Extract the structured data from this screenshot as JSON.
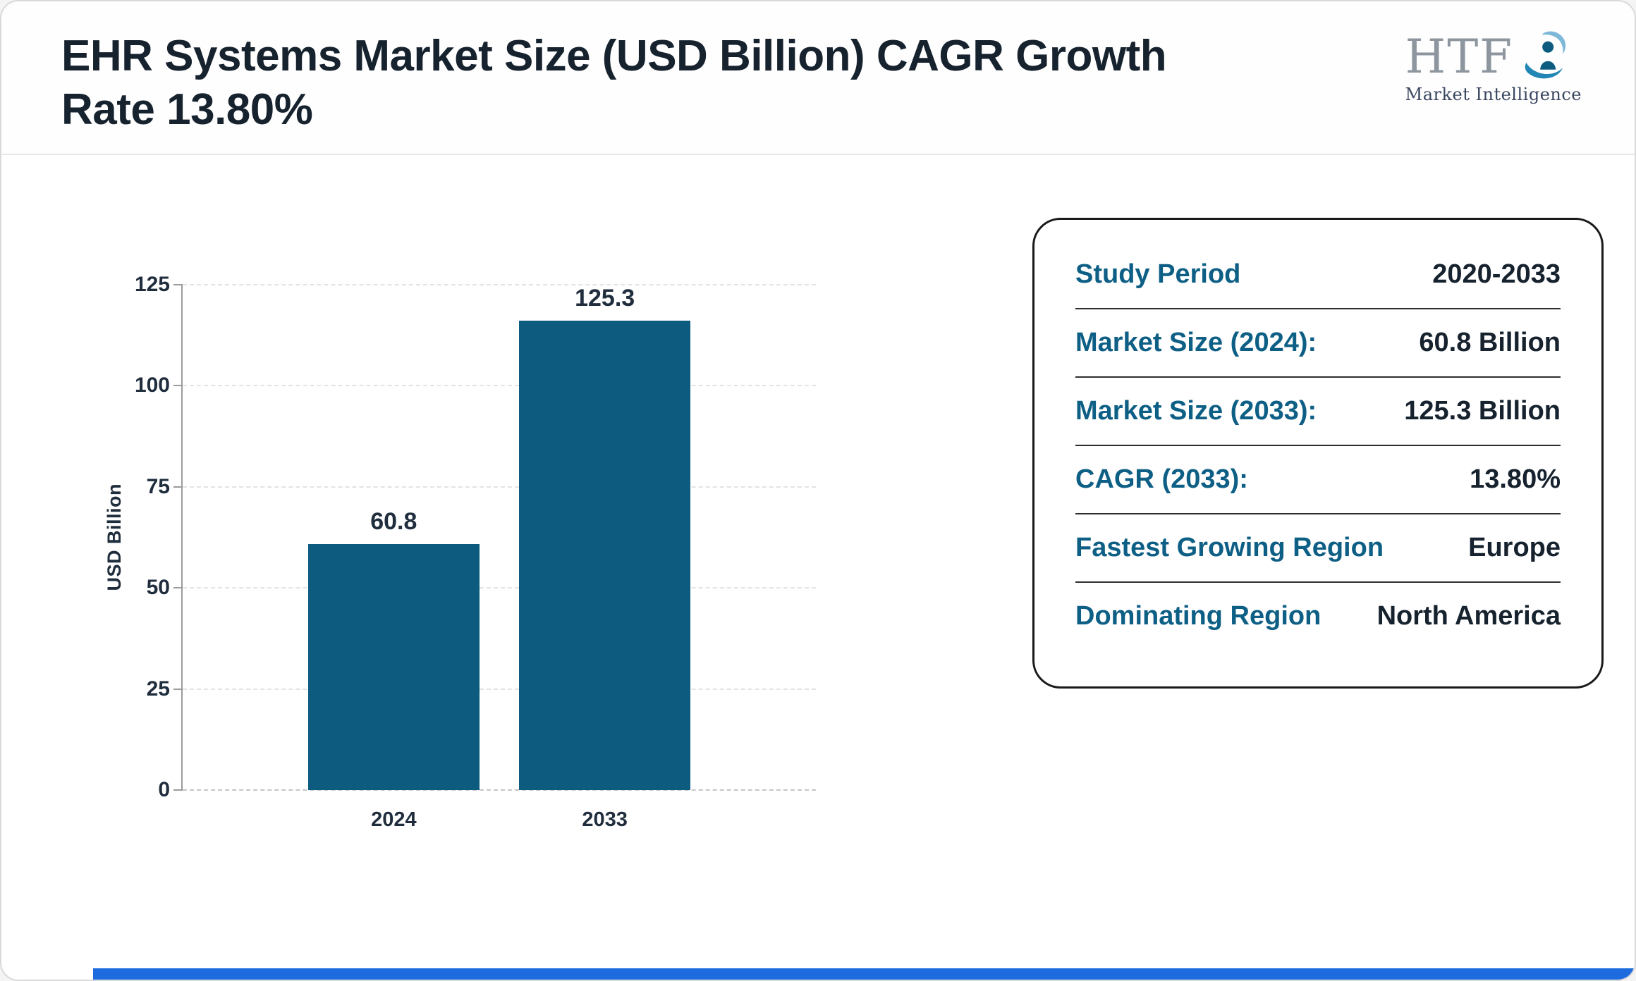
{
  "header": {
    "title": "EHR Systems Market Size (USD Billion) CAGR Growth Rate 13.80%",
    "logo": {
      "text": "HTF",
      "subtext": "Market Intelligence"
    }
  },
  "chart_data": {
    "type": "bar",
    "categories": [
      "2024",
      "2033"
    ],
    "values": [
      60.8,
      125.3
    ],
    "title": "",
    "xlabel": "",
    "ylabel": "USD Billion",
    "ylim": [
      0,
      125
    ],
    "yticks": [
      0,
      25,
      50,
      75,
      100,
      125
    ],
    "grid": true,
    "bar_color": "#0d5c80",
    "value_labels": [
      "60.8",
      "125.3"
    ]
  },
  "info_panel": {
    "rows": [
      {
        "label": "Study Period",
        "value": "2020-2033"
      },
      {
        "label": "Market Size (2024):",
        "value": "60.8 Billion"
      },
      {
        "label": "Market Size (2033):",
        "value": "125.3 Billion"
      },
      {
        "label": "CAGR (2033):",
        "value": "13.80%"
      },
      {
        "label": "Fastest Growing Region",
        "value": "Europe"
      },
      {
        "label": "Dominating Region",
        "value": "North America"
      }
    ]
  },
  "colors": {
    "accent": "#0d5c80",
    "label_teal": "#0e5f85",
    "text_dark": "#16222e",
    "bottom_strip": "#1e6be0"
  }
}
